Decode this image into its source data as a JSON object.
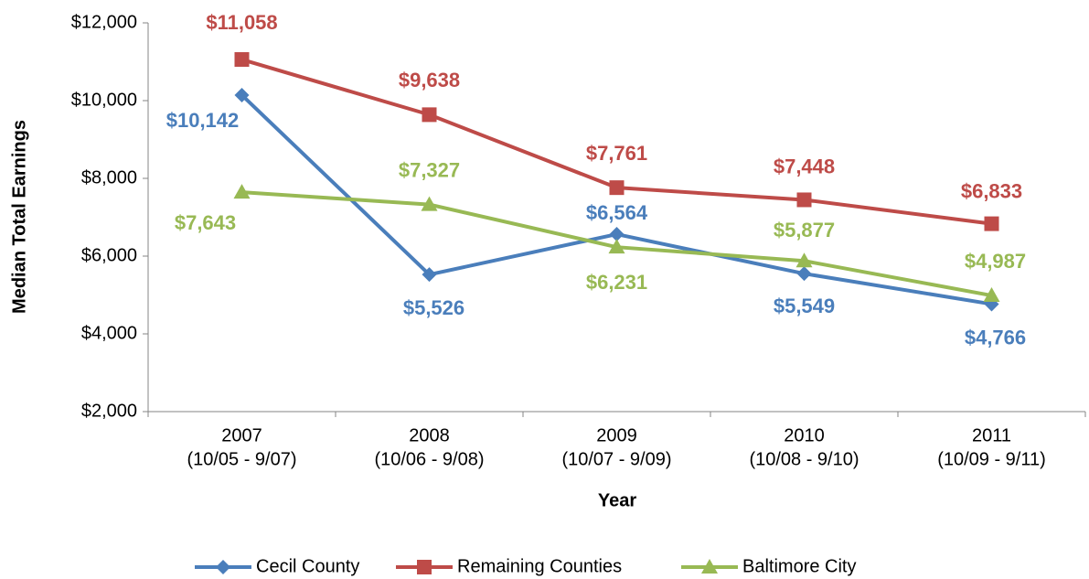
{
  "chart_data": {
    "type": "line",
    "y_axis_label": "Median Total Earnings",
    "x_axis_label": "Year",
    "categories": [
      "2007",
      "2008",
      "2009",
      "2010",
      "2011"
    ],
    "category_periods": [
      "(10/05 - 9/07)",
      "(10/06 - 9/08)",
      "(10/07 - 9/09)",
      "(10/08 - 9/10)",
      "(10/09 - 9/11)"
    ],
    "ylim": [
      2000,
      12000
    ],
    "yticks": [
      {
        "value": 2000,
        "label": "$2,000"
      },
      {
        "value": 4000,
        "label": "$4,000"
      },
      {
        "value": 6000,
        "label": "$6,000"
      },
      {
        "value": 8000,
        "label": "$8,000"
      },
      {
        "value": 10000,
        "label": "$10,000"
      },
      {
        "value": 12000,
        "label": "$12,000"
      }
    ],
    "series": [
      {
        "name": "Cecil County",
        "color": "#4a7ebb",
        "marker": "diamond",
        "values": [
          10142,
          5526,
          6564,
          5549,
          4766
        ],
        "value_labels": [
          "$10,142",
          "$5,526",
          "$6,564",
          "$5,549",
          "$4,766"
        ]
      },
      {
        "name": "Remaining Counties",
        "color": "#be4b48",
        "marker": "square",
        "values": [
          11058,
          9638,
          7761,
          7448,
          6833
        ],
        "value_labels": [
          "$11,058",
          "$9,638",
          "$7,761",
          "$7,448",
          "$6,833"
        ]
      },
      {
        "name": "Baltimore City",
        "color": "#98b954",
        "marker": "triangle",
        "values": [
          7643,
          7327,
          6231,
          5877,
          4987
        ],
        "value_labels": [
          "$7,643",
          "$7,327",
          "$6,231",
          "$5,877",
          "$4,987"
        ]
      }
    ],
    "legend": "bottom"
  }
}
